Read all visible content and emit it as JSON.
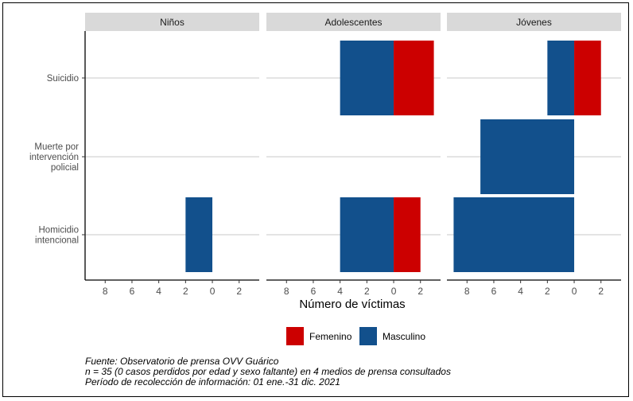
{
  "chart_data": {
    "type": "bar",
    "orientation": "horizontal",
    "layout": "pyramid-facets",
    "xlabel": "Número de víctimas",
    "xlim": [
      -9.5,
      3.5
    ],
    "x_ticks": [
      -8,
      -6,
      -4,
      -2,
      0,
      2
    ],
    "x_tick_labels": [
      "8",
      "6",
      "4",
      "2",
      "0",
      "2"
    ],
    "grid": true,
    "categories": [
      {
        "key": "suicidio",
        "label_lines": [
          "Suicidio"
        ]
      },
      {
        "key": "policial",
        "label_lines": [
          "Muerte por",
          "intervención",
          "policial"
        ]
      },
      {
        "key": "homicidio",
        "label_lines": [
          "Homicidio",
          "intencional"
        ]
      }
    ],
    "facets": [
      {
        "name": "Niños",
        "series": [
          {
            "name": "Masculino",
            "values": [
              0,
              0,
              2
            ]
          },
          {
            "name": "Femenino",
            "values": [
              0,
              0,
              0
            ]
          }
        ]
      },
      {
        "name": "Adolescentes",
        "series": [
          {
            "name": "Masculino",
            "values": [
              4,
              0,
              4
            ]
          },
          {
            "name": "Femenino",
            "values": [
              3,
              0,
              2
            ]
          }
        ]
      },
      {
        "name": "Jóvenes",
        "series": [
          {
            "name": "Masculino",
            "values": [
              2,
              7,
              9
            ]
          },
          {
            "name": "Femenino",
            "values": [
              2,
              0,
              0
            ]
          }
        ]
      }
    ],
    "legend": {
      "position": "bottom",
      "entries": [
        {
          "name": "Femenino",
          "color": "#cc0000"
        },
        {
          "name": "Masculino",
          "color": "#12508c"
        }
      ]
    },
    "caption": [
      "Fuente: Observatorio de prensa OVV Guárico",
      "n = 35 (0 casos perdidos por edad y sexo faltante) en 4 medios de prensa consultados",
      "Período de recolección de información: 01 ene.-31 dic. 2021"
    ]
  },
  "colors": {
    "strip_bg": "#d9d9d9",
    "grid": "#c8c8c8",
    "axis": "#000000"
  }
}
